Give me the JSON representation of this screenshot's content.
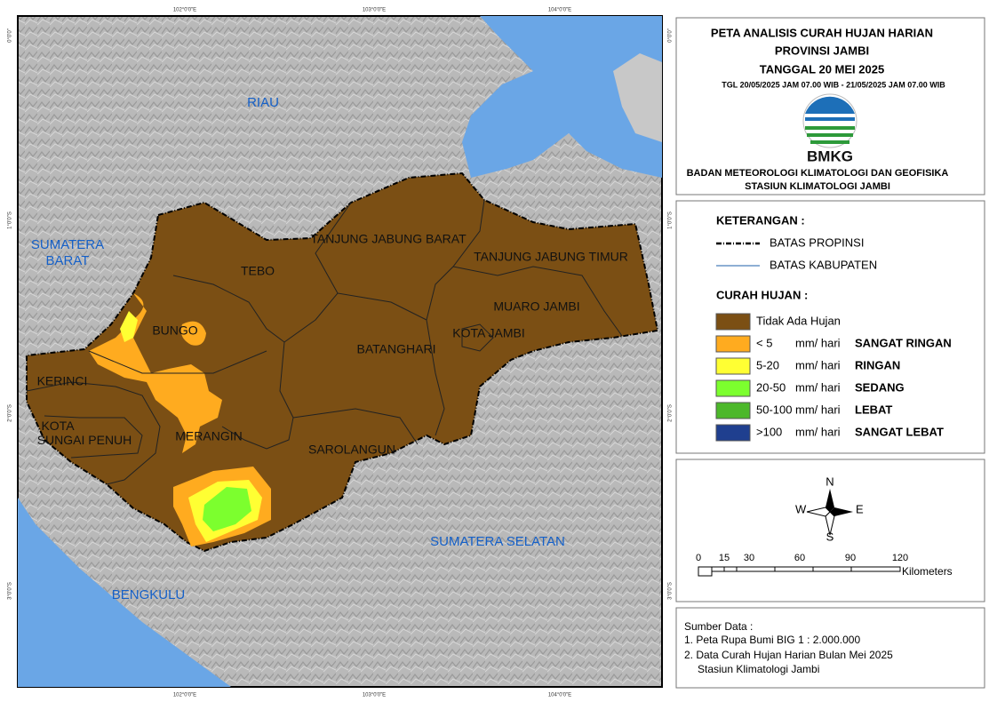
{
  "map": {
    "graticule": {
      "top": [
        "102°0'0\"E",
        "103°0'0\"E",
        "104°0'0\"E"
      ],
      "bottom": [
        "102°0'0\"E",
        "103°0'0\"E",
        "104°0'0\"E"
      ],
      "left": [
        "0°0'0\"",
        "1°0'0\"S",
        "2°0'0\"S",
        "3°0'0\"S"
      ],
      "right": [
        "0°0'0\"",
        "1°0'0\"S",
        "2°0'0\"S",
        "3°0'0\"S"
      ]
    },
    "regions": [
      "RIAU",
      "SUMATERA BARAT",
      "SUMATERA SELATAN",
      "BENGKULU"
    ],
    "districts": [
      "TANJUNG JABUNG BARAT",
      "TANJUNG JABUNG TIMUR",
      "TEBO",
      "BUNGO",
      "MUARO JAMBI",
      "KOTA JAMBI",
      "BATANGHARI",
      "KERINCI",
      "KOTA SUNGAI PENUH",
      "MERANGIN",
      "SAROLANGUN"
    ]
  },
  "header": {
    "title": "PETA ANALISIS CURAH HUJAN HARIAN",
    "province": "PROVINSI JAMBI",
    "date": "TANGGAL 20 MEI 2025",
    "period": "TGL 20/05/2025 JAM 07.00 WIB - 21/05/2025 JAM 07.00 WIB",
    "logo": "BMKG",
    "agency": "BADAN METEOROLOGI KLIMATOLOGI DAN GEOFISIKA",
    "station": "STASIUN KLIMATOLOGI JAMBI"
  },
  "legend": {
    "heading": "KETERANGAN :",
    "lines": [
      "BATAS PROPINSI",
      "BATAS KABUPATEN"
    ],
    "rain_heading": "CURAH HUJAN :",
    "classes": [
      {
        "label": "Tidak Ada Hujan",
        "color": "#7b4f14"
      },
      {
        "label": "< 5",
        "unit": "mm/ hari",
        "category": "SANGAT RINGAN",
        "color": "#ffab1f"
      },
      {
        "label": "5-20",
        "unit": "mm/ hari",
        "category": "RINGAN",
        "color": "#ffff33"
      },
      {
        "label": "20-50",
        "unit": "mm/ hari",
        "category": "SEDANG",
        "color": "#7cff2e"
      },
      {
        "label": "50-100",
        "unit": "mm/ hari",
        "category": "LEBAT",
        "color": "#4cb82a"
      },
      {
        "label": ">100",
        "unit": "mm/ hari",
        "category": "SANGAT LEBAT",
        "color": "#1f3f8f"
      }
    ]
  },
  "compass": {
    "n": "N",
    "s": "S",
    "e": "E",
    "w": "W"
  },
  "scale": {
    "ticks": [
      "0",
      "15",
      "30",
      "60",
      "90",
      "120"
    ],
    "unit": "Kilometers"
  },
  "source": {
    "heading": "Sumber Data :",
    "items": [
      "1. Peta Rupa Bumi BIG 1 : 2.000.000",
      "2. Data Curah Hujan Harian Bulan Mei 2025",
      "Stasiun Klimatologi Jambi"
    ]
  }
}
